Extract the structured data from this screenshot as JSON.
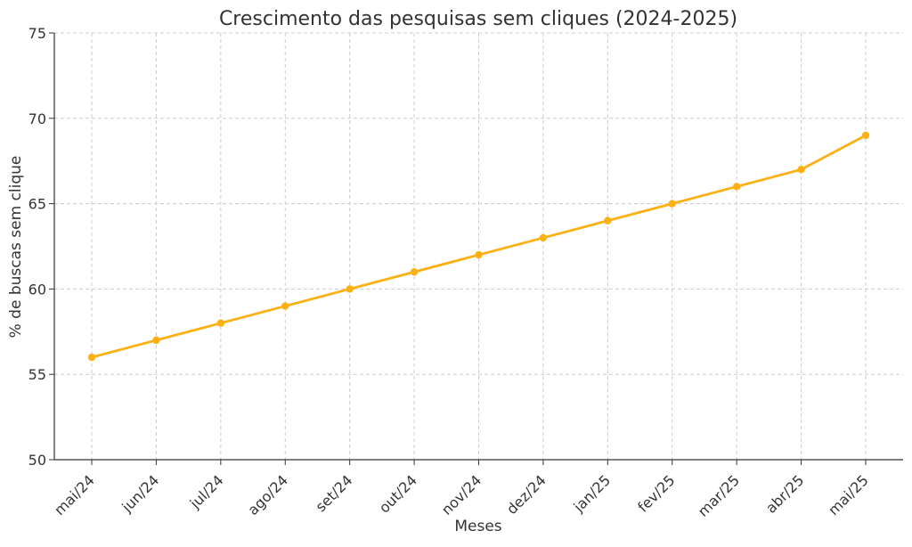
{
  "chart_data": {
    "type": "line",
    "title": "Crescimento das pesquisas sem cliques (2024-2025)",
    "xlabel": "Meses",
    "ylabel": "% de buscas sem clique",
    "categories": [
      "mai/24",
      "jun/24",
      "jul/24",
      "ago/24",
      "set/24",
      "out/24",
      "nov/24",
      "dez/24",
      "jan/25",
      "fev/25",
      "mar/25",
      "abr/25",
      "mai/25"
    ],
    "series": [
      {
        "values": [
          56,
          57,
          58,
          59,
          60,
          61,
          62,
          63,
          64,
          65,
          66,
          67,
          69
        ],
        "color": "#FBB114"
      }
    ],
    "ylim": [
      50,
      75
    ],
    "yticks": [
      50,
      55,
      60,
      65,
      70,
      75
    ],
    "grid": true,
    "markers": true
  }
}
